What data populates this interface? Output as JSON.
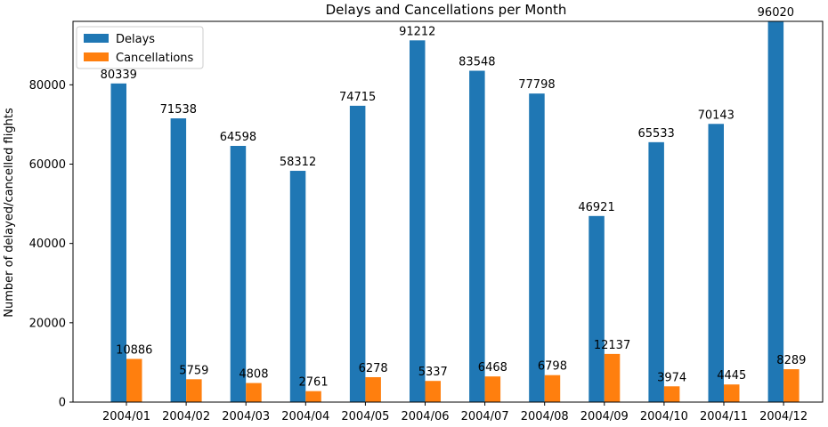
{
  "chart_data": {
    "type": "bar",
    "title": "Delays and Cancellations per Month",
    "xlabel": "",
    "ylabel": "Number of delayed/cancelled flights",
    "categories": [
      "2004/01",
      "2004/02",
      "2004/03",
      "2004/04",
      "2004/05",
      "2004/06",
      "2004/07",
      "2004/08",
      "2004/09",
      "2004/10",
      "2004/11",
      "2004/12"
    ],
    "series": [
      {
        "name": "Delays",
        "color": "#1f77b4",
        "values": [
          80339,
          71538,
          64598,
          58312,
          74715,
          91212,
          83548,
          77798,
          46921,
          65533,
          70143,
          96020
        ]
      },
      {
        "name": "Cancellations",
        "color": "#ff7f0e",
        "values": [
          10886,
          5759,
          4808,
          2761,
          6278,
          5337,
          6468,
          6798,
          12137,
          3974,
          4445,
          8289
        ]
      }
    ],
    "ylim": [
      0,
      96000
    ],
    "yticks": [
      0,
      20000,
      40000,
      60000,
      80000
    ],
    "grid": false,
    "legend_position": "top-left"
  }
}
